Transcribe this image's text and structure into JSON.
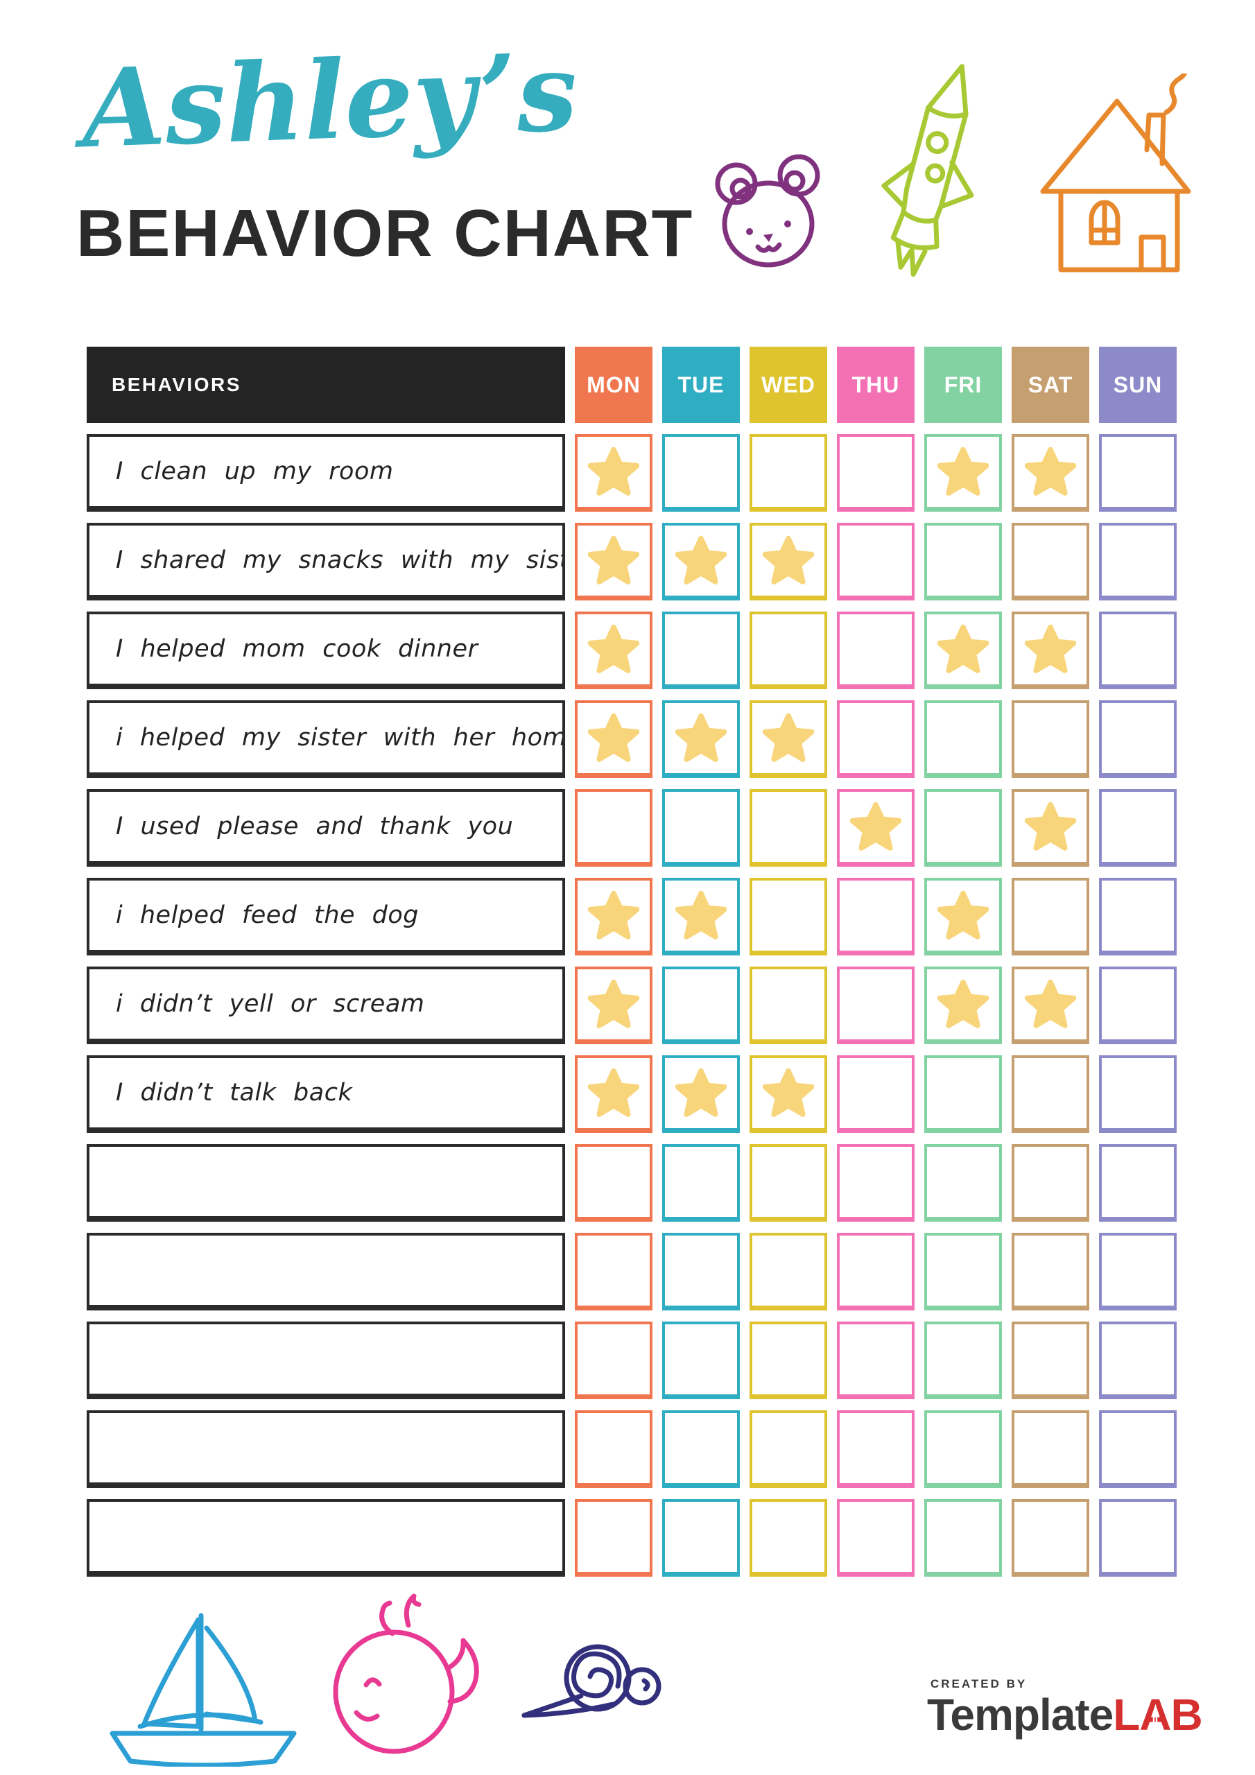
{
  "header": {
    "title_script": "Ashley’s",
    "title_script_color": "#35ADBE",
    "title_main": "BEHAVIOR CHART",
    "title_main_color": "#2B2B2B"
  },
  "table": {
    "behaviors_header": "BEHAVIORS",
    "behaviors_header_bg": "#242424",
    "row_border_color": "#2B2B2B",
    "star_color": "#F8D57A",
    "star_icon": "star-icon",
    "days": [
      {
        "label": "MON",
        "color": "#F0764F"
      },
      {
        "label": "TUE",
        "color": "#2FADC2"
      },
      {
        "label": "WED",
        "color": "#DFC42F"
      },
      {
        "label": "THU",
        "color": "#F470B5"
      },
      {
        "label": "FRI",
        "color": "#82D2A2"
      },
      {
        "label": "SAT",
        "color": "#C69F70"
      },
      {
        "label": "SUN",
        "color": "#8C8AC8"
      }
    ],
    "rows": [
      {
        "behavior": "I clean up my room",
        "stars": [
          "MON",
          "FRI",
          "SAT"
        ]
      },
      {
        "behavior": "I shared my snacks with my sister",
        "stars": [
          "MON",
          "TUE",
          "WED"
        ]
      },
      {
        "behavior": "I helped mom cook dinner",
        "stars": [
          "MON",
          "FRI",
          "SAT"
        ]
      },
      {
        "behavior": "i helped my sister with her homework",
        "stars": [
          "MON",
          "TUE",
          "WED"
        ]
      },
      {
        "behavior": "I used please and thank you",
        "stars": [
          "THU",
          "SAT"
        ]
      },
      {
        "behavior": "i helped feed the dog",
        "stars": [
          "MON",
          "TUE",
          "FRI"
        ]
      },
      {
        "behavior": "i didn’t yell or scream",
        "stars": [
          "MON",
          "FRI",
          "SAT"
        ]
      },
      {
        "behavior": "I didn’t talk back",
        "stars": [
          "MON",
          "TUE",
          "WED"
        ]
      },
      {
        "behavior": "",
        "stars": []
      },
      {
        "behavior": "",
        "stars": []
      },
      {
        "behavior": "",
        "stars": []
      },
      {
        "behavior": "",
        "stars": []
      },
      {
        "behavior": "",
        "stars": []
      }
    ]
  },
  "decorations": {
    "bear": {
      "icon": "bear-icon",
      "color": "#80327F"
    },
    "rocket": {
      "icon": "rocket-icon",
      "color": "#A8C934"
    },
    "house": {
      "icon": "house-icon",
      "color": "#E8882C"
    },
    "sailboat": {
      "icon": "sailboat-icon",
      "color": "#2C9FD4"
    },
    "whale": {
      "icon": "whale-icon",
      "color": "#E83A92"
    },
    "snail": {
      "icon": "snail-icon",
      "color": "#32307C"
    }
  },
  "footer": {
    "created_by": "CREATED BY",
    "created_by_color": "#3A3A3A",
    "brand_primary": "Template",
    "brand_primary_color": "#3A3A3A",
    "brand_accent_l": "L",
    "brand_accent_a": "A",
    "brand_accent_b": "B",
    "brand_accent_color": "#D62F2F"
  }
}
